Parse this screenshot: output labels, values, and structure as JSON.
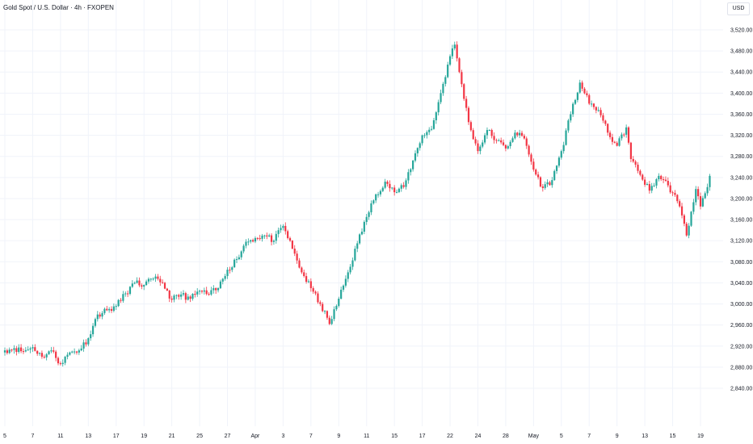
{
  "header": {
    "title": "Gold Spot / U.S. Dollar · 4h · FXOPEN",
    "currency": "USD"
  },
  "colors": {
    "up": "#26a69a",
    "down": "#f23645",
    "grid": "#f0f3fa",
    "axis_text": "#131722"
  },
  "chart_data": {
    "type": "candlestick",
    "title": "Gold Spot / U.S. Dollar · 4h · FXOPEN",
    "currency": "USD",
    "grid": true,
    "ylim": [
      2820,
      3540
    ],
    "y_ticks": [
      "3,520.00",
      "3,480.00",
      "3,440.00",
      "3,400.00",
      "3,360.00",
      "3,320.00",
      "3,280.00",
      "3,240.00",
      "3,200.00",
      "3,160.00",
      "3,120.00",
      "3,080.00",
      "3,040.00",
      "3,000.00",
      "2,960.00",
      "2,920.00",
      "2,880.00",
      "2,840.00"
    ],
    "y_tick_values": [
      3520,
      3480,
      3440,
      3400,
      3360,
      3320,
      3280,
      3240,
      3200,
      3160,
      3120,
      3080,
      3040,
      3000,
      2960,
      2920,
      2880,
      2840
    ],
    "x_ticks": [
      "5",
      "7",
      "11",
      "13",
      "17",
      "19",
      "21",
      "25",
      "27",
      "Apr",
      "3",
      "7",
      "9",
      "11",
      "15",
      "17",
      "22",
      "24",
      "28",
      "May",
      "5",
      "7",
      "9",
      "13",
      "15",
      "19"
    ],
    "x_tick_index": [
      0,
      12,
      24,
      36,
      48,
      60,
      72,
      84,
      96,
      108,
      120,
      132,
      144,
      156,
      168,
      180,
      192,
      204,
      216,
      228,
      240,
      252,
      264,
      276,
      288,
      300
    ],
    "anchors": [
      [
        0,
        2912
      ],
      [
        4,
        2916
      ],
      [
        8,
        2910
      ],
      [
        12,
        2918
      ],
      [
        16,
        2900
      ],
      [
        20,
        2912
      ],
      [
        24,
        2886
      ],
      [
        28,
        2908
      ],
      [
        32,
        2912
      ],
      [
        36,
        2935
      ],
      [
        40,
        2980
      ],
      [
        44,
        2988
      ],
      [
        48,
        2996
      ],
      [
        52,
        3020
      ],
      [
        56,
        3040
      ],
      [
        60,
        3036
      ],
      [
        64,
        3048
      ],
      [
        68,
        3040
      ],
      [
        72,
        3008
      ],
      [
        76,
        3018
      ],
      [
        80,
        3010
      ],
      [
        84,
        3025
      ],
      [
        88,
        3018
      ],
      [
        92,
        3030
      ],
      [
        96,
        3065
      ],
      [
        100,
        3085
      ],
      [
        104,
        3118
      ],
      [
        108,
        3125
      ],
      [
        112,
        3130
      ],
      [
        116,
        3120
      ],
      [
        120,
        3148
      ],
      [
        124,
        3105
      ],
      [
        128,
        3060
      ],
      [
        132,
        3030
      ],
      [
        136,
        3000
      ],
      [
        140,
        2962
      ],
      [
        144,
        3010
      ],
      [
        148,
        3060
      ],
      [
        152,
        3115
      ],
      [
        156,
        3165
      ],
      [
        160,
        3208
      ],
      [
        164,
        3232
      ],
      [
        168,
        3212
      ],
      [
        172,
        3222
      ],
      [
        176,
        3272
      ],
      [
        180,
        3320
      ],
      [
        184,
        3332
      ],
      [
        188,
        3400
      ],
      [
        192,
        3470
      ],
      [
        194,
        3492
      ],
      [
        196,
        3440
      ],
      [
        200,
        3345
      ],
      [
        204,
        3290
      ],
      [
        208,
        3330
      ],
      [
        212,
        3310
      ],
      [
        216,
        3295
      ],
      [
        220,
        3325
      ],
      [
        224,
        3314
      ],
      [
        228,
        3255
      ],
      [
        232,
        3220
      ],
      [
        236,
        3235
      ],
      [
        240,
        3290
      ],
      [
        244,
        3360
      ],
      [
        248,
        3420
      ],
      [
        252,
        3380
      ],
      [
        256,
        3368
      ],
      [
        260,
        3325
      ],
      [
        264,
        3300
      ],
      [
        268,
        3335
      ],
      [
        270,
        3275
      ],
      [
        274,
        3245
      ],
      [
        278,
        3215
      ],
      [
        282,
        3243
      ],
      [
        286,
        3225
      ],
      [
        290,
        3195
      ],
      [
        292,
        3168
      ],
      [
        294,
        3130
      ],
      [
        296,
        3175
      ],
      [
        298,
        3218
      ],
      [
        300,
        3185
      ],
      [
        302,
        3210
      ],
      [
        304,
        3243
      ]
    ]
  }
}
